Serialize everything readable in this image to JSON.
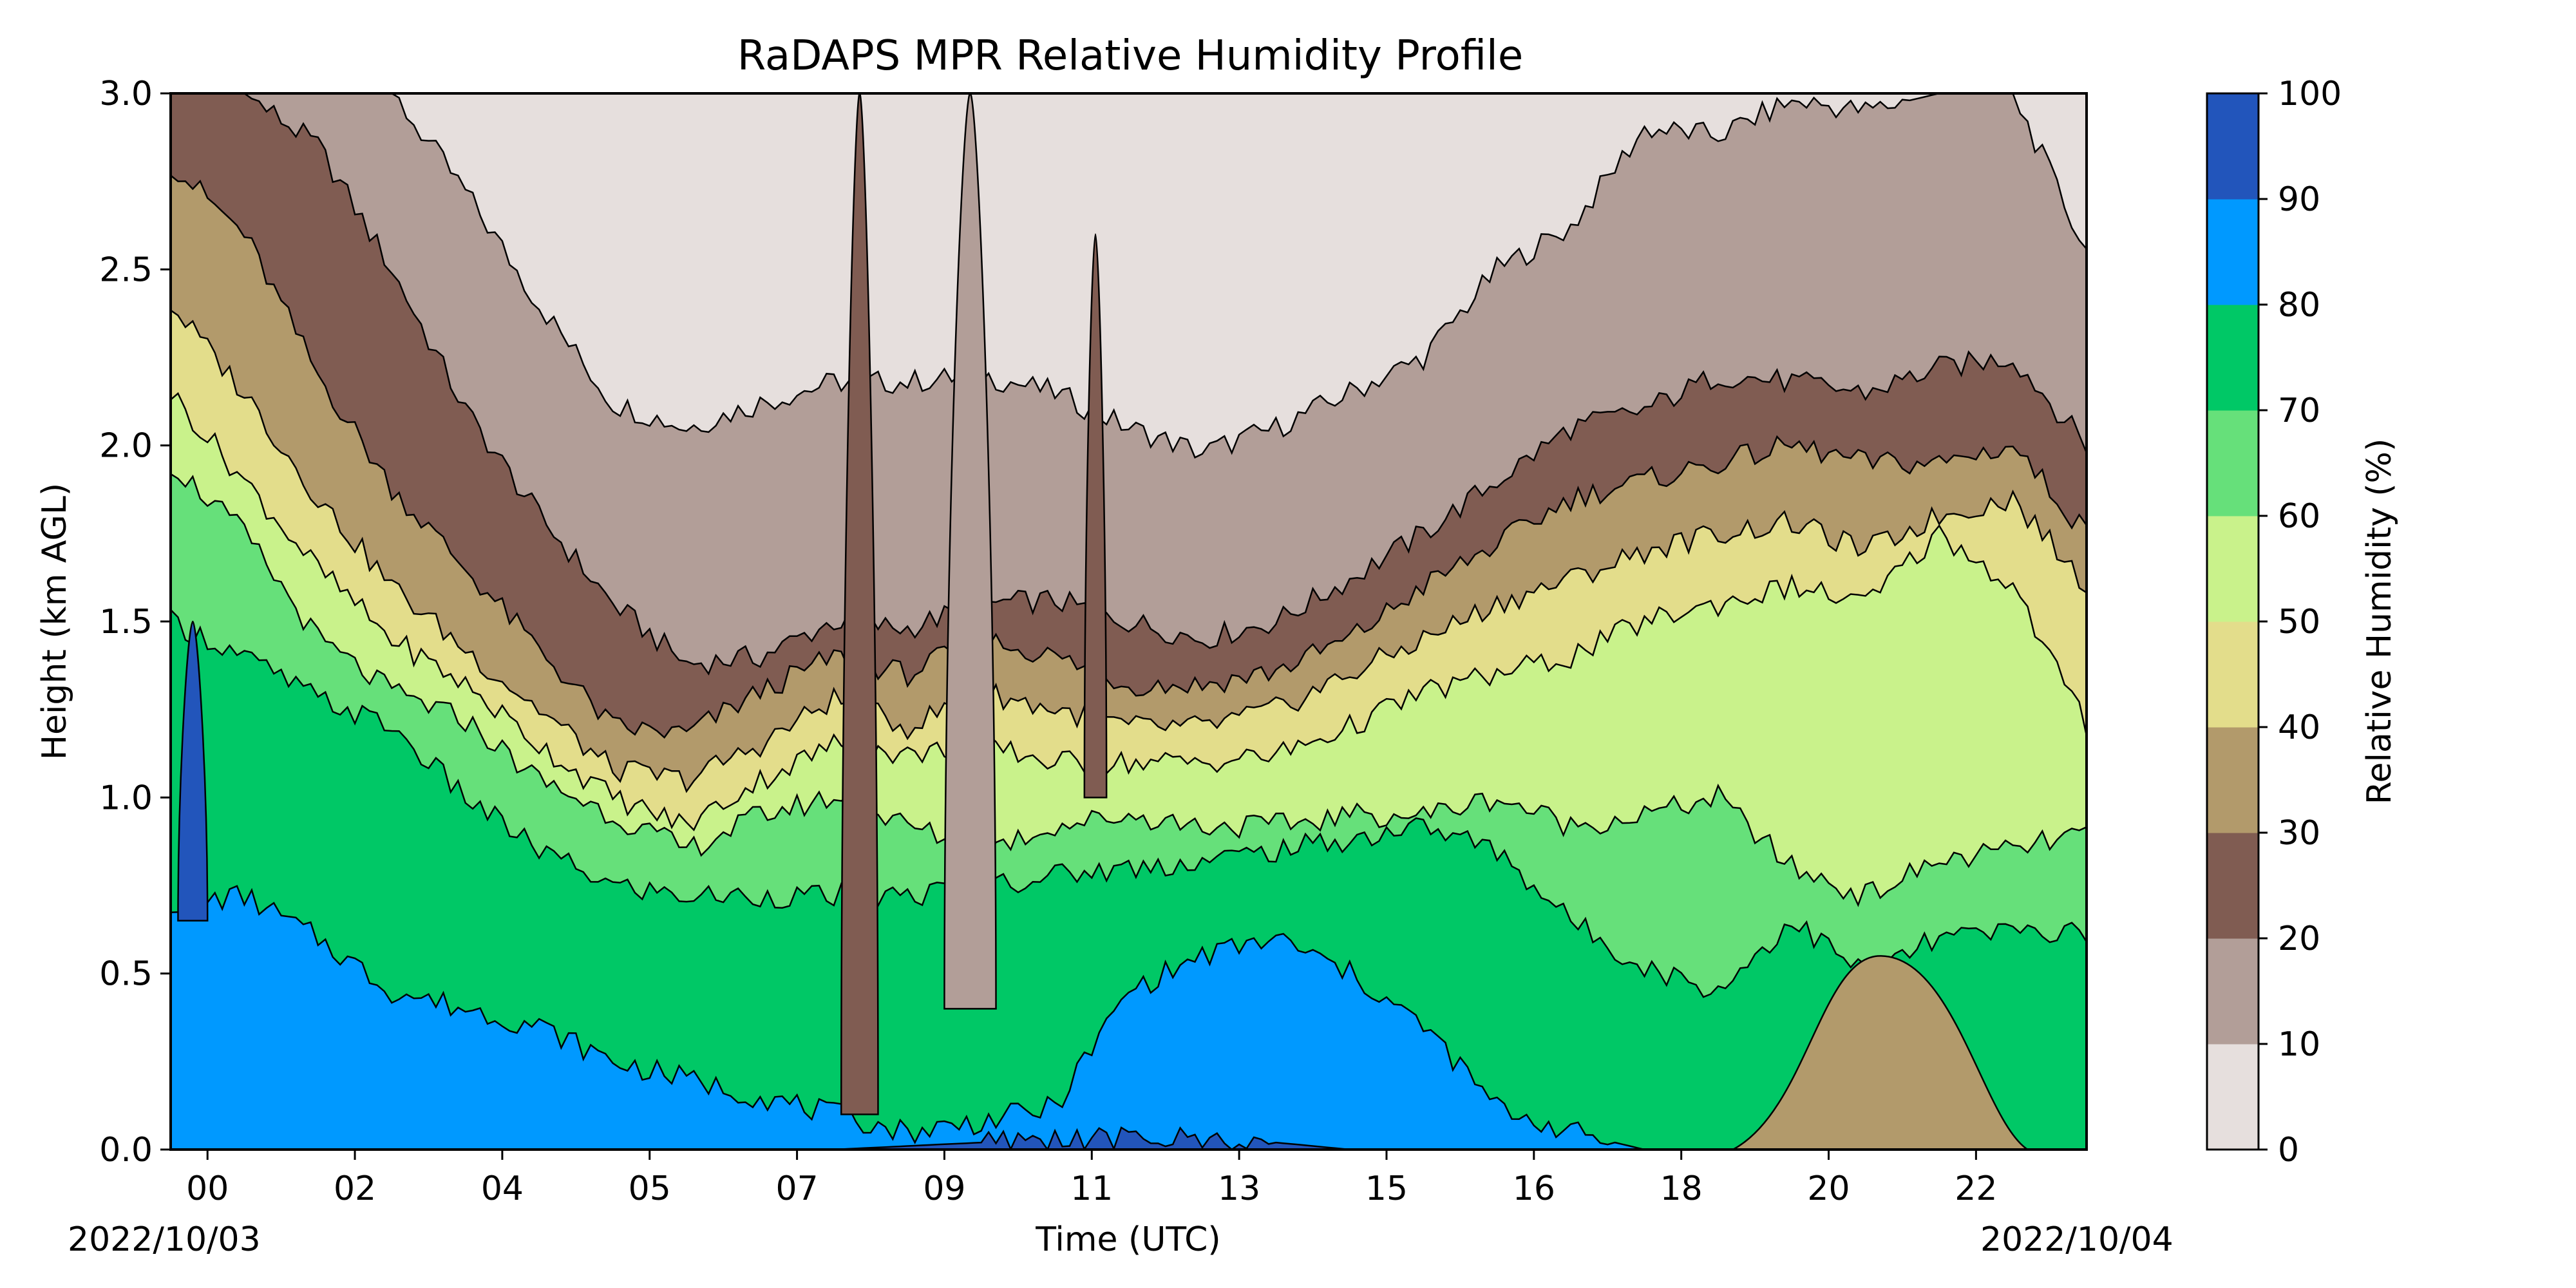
{
  "chart_data": {
    "type": "heatmap",
    "subtype": "filled-contour",
    "title": "RaDAPS MPR Relative Humidity Profile",
    "xlabel": "Time (UTC)",
    "ylabel": "Height (km AGL)",
    "colorbar_label": "Relative Humidity (%)",
    "start_date_label": "2022/10/03",
    "end_date_label": "2022/10/04",
    "x_tick_labels": [
      "00",
      "02",
      "04",
      "05",
      "07",
      "09",
      "11",
      "13",
      "15",
      "16",
      "18",
      "20",
      "22"
    ],
    "x_tick_hours": [
      0.5,
      2.5,
      4.5,
      6.5,
      8.5,
      10.5,
      12.5,
      14.5,
      16.5,
      18.5,
      20.5,
      22.5,
      24.5
    ],
    "xlim_hours": [
      0,
      26
    ],
    "ylim": [
      0,
      3.0
    ],
    "y_ticks": [
      0.0,
      0.5,
      1.0,
      1.5,
      2.0,
      2.5,
      3.0
    ],
    "y_tick_labels": [
      "0.0",
      "0.5",
      "1.0",
      "1.5",
      "2.0",
      "2.5",
      "3.0"
    ],
    "levels": [
      0,
      10,
      20,
      30,
      40,
      50,
      60,
      70,
      80,
      90,
      100
    ],
    "level_colors": [
      "#e6dfdd",
      "#b29e98",
      "#805c52",
      "#b29a6b",
      "#e3dd8b",
      "#c9f28b",
      "#66e07a",
      "#00c866",
      "#0099ff",
      "#2255bb"
    ],
    "contour_boundaries": [
      {
        "level": 10,
        "x": [
          0,
          1,
          2,
          3,
          4,
          5,
          6,
          7,
          8,
          9,
          10,
          11,
          12,
          13,
          14,
          15,
          16,
          17,
          18,
          19,
          20,
          21,
          22,
          23,
          24,
          25,
          26
        ],
        "y": [
          3.0,
          3.0,
          3.0,
          3.0,
          2.72,
          2.4,
          2.12,
          2.05,
          2.12,
          2.18,
          2.18,
          2.2,
          2.15,
          2.05,
          1.98,
          2.05,
          2.15,
          2.25,
          2.5,
          2.62,
          2.9,
          2.88,
          2.98,
          2.95,
          3.0,
          3.0,
          2.55
        ]
      },
      {
        "level": 20,
        "x": [
          0,
          1,
          2,
          3,
          4,
          5,
          6,
          7,
          8,
          9,
          10,
          11,
          12,
          13,
          14,
          15,
          16,
          17,
          18,
          19,
          20,
          21,
          22,
          23,
          24,
          25,
          26
        ],
        "y": [
          3.0,
          3.0,
          2.85,
          2.5,
          2.1,
          1.8,
          1.55,
          1.38,
          1.4,
          1.5,
          1.48,
          1.55,
          1.56,
          1.5,
          1.45,
          1.5,
          1.62,
          1.75,
          1.9,
          2.05,
          2.1,
          2.2,
          2.18,
          2.15,
          2.22,
          2.25,
          2.0
        ]
      },
      {
        "level": 30,
        "x": [
          0,
          1,
          2,
          3,
          4,
          5,
          6,
          7,
          8,
          9,
          10,
          11,
          12,
          13,
          14,
          15,
          16,
          17,
          18,
          19,
          20,
          21,
          22,
          23,
          24,
          25,
          26
        ],
        "y": [
          2.8,
          2.6,
          2.2,
          1.88,
          1.65,
          1.42,
          1.2,
          1.18,
          1.3,
          1.4,
          1.35,
          1.45,
          1.4,
          1.32,
          1.32,
          1.36,
          1.45,
          1.6,
          1.72,
          1.85,
          1.9,
          1.95,
          2.0,
          1.95,
          1.95,
          2.0,
          1.75
        ]
      },
      {
        "level": 40,
        "x": [
          0,
          1,
          2,
          3,
          4,
          5,
          6,
          7,
          8,
          9,
          10,
          11,
          12,
          13,
          14,
          15,
          16,
          17,
          18,
          19,
          20,
          21,
          22,
          23,
          24,
          25,
          26
        ],
        "y": [
          2.4,
          2.15,
          1.85,
          1.6,
          1.42,
          1.25,
          1.08,
          1.05,
          1.15,
          1.28,
          1.2,
          1.3,
          1.25,
          1.2,
          1.2,
          1.25,
          1.35,
          1.45,
          1.55,
          1.62,
          1.7,
          1.75,
          1.78,
          1.7,
          1.8,
          1.85,
          1.6
        ]
      },
      {
        "level": 50,
        "x": [
          0,
          1,
          2,
          3,
          4,
          5,
          6,
          7,
          8,
          9,
          10,
          11,
          12,
          13,
          14,
          15,
          16,
          17,
          18,
          19,
          20,
          21,
          22,
          23,
          24,
          25,
          26
        ],
        "y": [
          2.15,
          1.9,
          1.65,
          1.45,
          1.32,
          1.15,
          1.0,
          0.92,
          1.05,
          1.15,
          1.12,
          1.15,
          1.1,
          1.1,
          1.1,
          1.12,
          1.2,
          1.3,
          1.35,
          1.4,
          1.5,
          1.55,
          1.6,
          1.55,
          1.75,
          1.6,
          1.2
        ]
      },
      {
        "level": 60,
        "x": [
          0,
          1,
          2,
          3,
          4,
          5,
          6,
          7,
          8,
          9,
          10,
          11,
          12,
          13,
          14,
          15,
          16,
          17,
          18,
          19,
          20,
          21,
          22,
          23,
          24,
          25,
          26
        ],
        "y": [
          1.95,
          1.75,
          1.45,
          1.3,
          1.22,
          1.05,
          0.95,
          0.85,
          0.95,
          1.0,
          0.92,
          0.85,
          0.92,
          0.95,
          0.92,
          0.92,
          0.95,
          0.95,
          1.0,
          0.92,
          0.95,
          1.0,
          0.8,
          0.72,
          0.82,
          0.85,
          0.9
        ]
      },
      {
        "level": 70,
        "x": [
          0,
          1,
          2,
          3,
          4,
          5,
          6,
          7,
          8,
          9,
          10,
          11,
          12,
          13,
          14,
          15,
          16,
          17,
          18,
          19,
          20,
          21,
          22,
          23,
          24,
          25,
          26
        ],
        "y": [
          1.5,
          1.4,
          1.28,
          1.2,
          1.0,
          0.85,
          0.75,
          0.72,
          0.72,
          0.72,
          0.72,
          0.75,
          0.78,
          0.8,
          0.82,
          0.85,
          0.88,
          0.92,
          0.85,
          0.65,
          0.52,
          0.45,
          0.65,
          0.5,
          0.6,
          0.62,
          0.62
        ]
      },
      {
        "level": 80,
        "x": [
          0,
          1,
          2,
          3,
          4,
          5,
          6,
          7,
          8,
          9,
          10,
          11,
          12,
          13,
          14,
          15,
          16,
          17,
          18,
          19,
          20,
          21,
          22,
          23,
          24,
          25,
          26
        ],
        "y": [
          0.7,
          0.72,
          0.6,
          0.45,
          0.4,
          0.35,
          0.25,
          0.2,
          0.15,
          0.1,
          0.05,
          0.08,
          0.12,
          0.45,
          0.55,
          0.6,
          0.5,
          0.35,
          0.12,
          0.05,
          0.0,
          0.0,
          0.0,
          0.0,
          0.0,
          0.0,
          0.0
        ]
      },
      {
        "level": 90,
        "x": [
          0,
          1,
          2,
          3,
          4,
          5,
          6,
          7,
          8,
          9,
          10,
          11,
          12,
          13,
          14,
          15,
          16,
          17,
          18,
          19,
          20,
          21,
          22,
          23,
          24,
          25,
          26
        ],
        "y": [
          0.0,
          0.0,
          0.0,
          0.0,
          0.0,
          0.0,
          0.0,
          0.0,
          0.0,
          0.0,
          0.01,
          0.02,
          0.03,
          0.03,
          0.03,
          0.02,
          0.0,
          0.0,
          0.0,
          0.0,
          0.0,
          0.0,
          0.0,
          0.0,
          0.0,
          0.0,
          0.0
        ]
      }
    ],
    "features": [
      {
        "name": "high-rh-column",
        "level": 90,
        "x_range": [
          0.1,
          0.5
        ],
        "y_range": [
          0.65,
          1.5
        ]
      },
      {
        "name": "low-rh-wedge",
        "level": 30,
        "x_range": [
          21.2,
          25.2
        ],
        "y_range": [
          0.0,
          0.55
        ]
      },
      {
        "name": "dry-intrusion-0745",
        "level": 20,
        "x_range": [
          9.1,
          9.6
        ],
        "y_range": [
          0.1,
          3.0
        ]
      },
      {
        "name": "dry-intrusion-0900",
        "level": 10,
        "x_range": [
          10.5,
          11.2
        ],
        "y_range": [
          0.4,
          3.0
        ]
      },
      {
        "name": "dry-intrusion-1100",
        "level": 20,
        "x_range": [
          12.4,
          12.7
        ],
        "y_range": [
          1.0,
          2.6
        ]
      }
    ],
    "colorbar_ticks": [
      0,
      10,
      20,
      30,
      40,
      50,
      60,
      70,
      80,
      90,
      100
    ],
    "colorbar_tick_labels": [
      "0",
      "10",
      "20",
      "30",
      "40",
      "50",
      "60",
      "70",
      "80",
      "90",
      "100"
    ],
    "grid": false,
    "legend": "colorbar-right"
  }
}
